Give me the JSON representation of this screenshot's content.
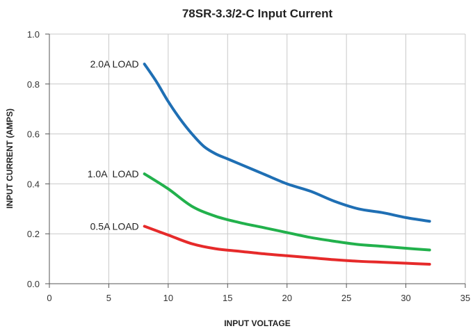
{
  "chart_data": {
    "type": "line",
    "title": "78SR-3.3/2-C Input Current",
    "xlabel": "INPUT VOLTAGE",
    "ylabel": "INPUT CURRENT (AMPS)",
    "xlim": [
      0,
      35
    ],
    "ylim": [
      0,
      1.0
    ],
    "x_ticks": [
      "0",
      "5",
      "10",
      "15",
      "20",
      "25",
      "30",
      "35"
    ],
    "y_ticks": [
      "0.0",
      "0.2",
      "0.4",
      "0.6",
      "0.8",
      "1.0"
    ],
    "grid": true,
    "series": [
      {
        "name": "2.0A LOAD",
        "color": "#1f6fb4",
        "x": [
          8,
          9,
          10,
          11,
          12,
          13,
          14,
          15,
          16,
          18,
          20,
          22,
          24,
          26,
          28,
          30,
          32
        ],
        "y": [
          0.88,
          0.81,
          0.73,
          0.66,
          0.6,
          0.55,
          0.52,
          0.5,
          0.48,
          0.44,
          0.4,
          0.37,
          0.33,
          0.3,
          0.285,
          0.265,
          0.25
        ]
      },
      {
        "name": "1.0A  LOAD",
        "color": "#22b14c",
        "x": [
          8,
          10,
          12,
          14,
          16,
          18,
          20,
          22,
          24,
          26,
          28,
          30,
          32
        ],
        "y": [
          0.44,
          0.38,
          0.31,
          0.27,
          0.245,
          0.225,
          0.205,
          0.185,
          0.17,
          0.157,
          0.15,
          0.142,
          0.135
        ]
      },
      {
        "name": "0.5A LOAD",
        "color": "#e62a2a",
        "x": [
          8,
          10,
          12,
          14,
          16,
          18,
          20,
          22,
          24,
          26,
          28,
          30,
          32
        ],
        "y": [
          0.23,
          0.195,
          0.16,
          0.14,
          0.13,
          0.12,
          0.112,
          0.104,
          0.096,
          0.09,
          0.086,
          0.082,
          0.078
        ]
      }
    ]
  }
}
